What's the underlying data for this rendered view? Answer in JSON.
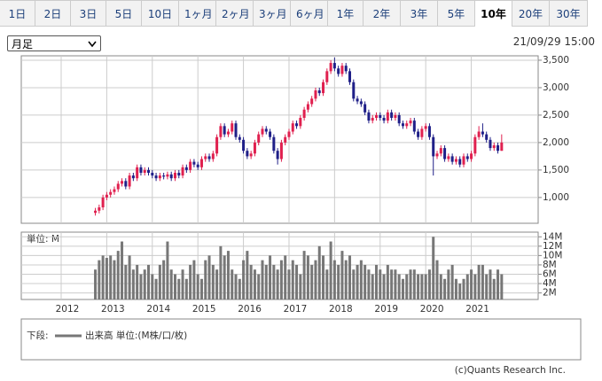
{
  "tabs": [
    "1日",
    "2日",
    "3日",
    "5日",
    "10日",
    "1ヶ月",
    "2ヶ月",
    "3ヶ月",
    "6ヶ月",
    "1年",
    "2年",
    "3年",
    "5年",
    "10年",
    "20年",
    "30年"
  ],
  "selected_tab_index": 13,
  "period_select": "月足",
  "timestamp": "21/09/29 15:00",
  "chart_data": {
    "type": "candlestick",
    "categories": [
      "2012",
      null,
      null,
      null,
      null,
      null,
      null,
      null,
      null,
      null,
      null,
      null,
      "2013",
      null,
      null,
      null,
      null,
      null,
      null,
      null,
      null,
      null,
      null,
      null,
      "2014",
      null,
      null,
      null,
      null,
      null,
      null,
      null,
      null,
      null,
      null,
      null,
      "2015",
      null,
      null,
      null,
      null,
      null,
      null,
      null,
      null,
      null,
      null,
      null,
      "2016",
      null,
      null,
      null,
      null,
      null,
      null,
      null,
      null,
      null,
      null,
      null,
      "2017",
      null,
      null,
      null,
      null,
      null,
      null,
      null,
      null,
      null,
      null,
      null,
      "2018",
      null,
      null,
      null,
      null,
      null,
      null,
      null,
      null,
      null,
      null,
      null,
      "2019",
      null,
      null,
      null,
      null,
      null,
      null,
      null,
      null,
      null,
      null,
      null,
      "2020",
      null,
      null,
      null,
      null,
      null,
      null,
      null,
      null,
      null,
      null,
      null,
      "2021",
      null,
      null,
      null,
      null,
      null,
      null,
      null,
      null
    ],
    "open": [
      null,
      null,
      null,
      null,
      null,
      null,
      null,
      null,
      null,
      720,
      760,
      820,
      1000,
      1050,
      1100,
      1150,
      1250,
      1300,
      1200,
      1400,
      1350,
      1550,
      1450,
      1500,
      1450,
      1400,
      1350,
      1400,
      1380,
      1420,
      1350,
      1450,
      1400,
      1550,
      1500,
      1650,
      1600,
      1550,
      1700,
      1750,
      1700,
      1800,
      2100,
      2300,
      2150,
      2200,
      2350,
      2100,
      2050,
      1850,
      1750,
      1800,
      2000,
      2150,
      2250,
      2200,
      2100,
      1850,
      1700,
      2000,
      2100,
      2200,
      2350,
      2300,
      2450,
      2600,
      2700,
      2800,
      2950,
      2900,
      3100,
      3300,
      3450,
      3350,
      3250,
      3400,
      3300,
      3100,
      2800,
      2750,
      2700,
      2550,
      2400,
      2450,
      2500,
      2450,
      2400,
      2550,
      2450,
      2500,
      2350,
      2300,
      2350,
      2400,
      2200,
      2100,
      2250,
      2300,
      2100,
      1750,
      1800,
      1900,
      1700,
      1750,
      1650,
      1700,
      1600,
      1750,
      1700,
      1800,
      2100,
      2200,
      2150,
      2050,
      1900,
      1950,
      1850
    ],
    "high": [
      null,
      null,
      null,
      null,
      null,
      null,
      null,
      null,
      null,
      810,
      870,
      1050,
      1100,
      1150,
      1200,
      1300,
      1350,
      1350,
      1450,
      1450,
      1600,
      1600,
      1550,
      1550,
      1500,
      1450,
      1450,
      1450,
      1470,
      1470,
      1500,
      1500,
      1600,
      1600,
      1700,
      1700,
      1650,
      1750,
      1800,
      1800,
      1850,
      2150,
      2350,
      2350,
      2250,
      2400,
      2400,
      2150,
      2100,
      1900,
      1850,
      2050,
      2200,
      2300,
      2300,
      2250,
      2150,
      1900,
      2050,
      2150,
      2250,
      2400,
      2400,
      2500,
      2650,
      2750,
      2850,
      3000,
      3000,
      3150,
      3350,
      3500,
      3550,
      3400,
      3450,
      3450,
      3350,
      3150,
      2850,
      2800,
      2750,
      2600,
      2500,
      2550,
      2550,
      2500,
      2600,
      2600,
      2550,
      2550,
      2400,
      2400,
      2450,
      2450,
      2250,
      2300,
      2350,
      2350,
      2150,
      1850,
      1950,
      1950,
      1800,
      1800,
      1750,
      1750,
      1800,
      1800,
      1850,
      2150,
      2300,
      2350,
      2200,
      2100,
      2000,
      2000,
      2150
    ],
    "low": [
      null,
      null,
      null,
      null,
      null,
      null,
      null,
      null,
      null,
      670,
      710,
      770,
      950,
      1000,
      1050,
      1100,
      1200,
      1150,
      1150,
      1300,
      1300,
      1400,
      1400,
      1400,
      1350,
      1300,
      1300,
      1330,
      1330,
      1300,
      1300,
      1350,
      1350,
      1450,
      1450,
      1550,
      1500,
      1500,
      1650,
      1650,
      1650,
      1750,
      2050,
      2100,
      2100,
      2150,
      2050,
      2000,
      1800,
      1700,
      1700,
      1750,
      1950,
      2100,
      2150,
      2050,
      1800,
      1600,
      1650,
      1950,
      2050,
      2150,
      2250,
      2250,
      2400,
      2550,
      2650,
      2750,
      2850,
      2850,
      3050,
      3250,
      3300,
      3200,
      3200,
      3250,
      3050,
      2750,
      2700,
      2650,
      2500,
      2350,
      2350,
      2400,
      2400,
      2350,
      2350,
      2400,
      2400,
      2300,
      2250,
      2250,
      2300,
      2150,
      2050,
      2050,
      2200,
      2050,
      1400,
      1700,
      1750,
      1650,
      1650,
      1600,
      1600,
      1550,
      1550,
      1650,
      1650,
      1750,
      2050,
      2100,
      2000,
      1850,
      1850,
      1800,
      1850
    ],
    "close": [
      null,
      null,
      null,
      null,
      null,
      null,
      null,
      null,
      null,
      760,
      820,
      1000,
      1050,
      1100,
      1150,
      1250,
      1300,
      1200,
      1400,
      1350,
      1550,
      1450,
      1500,
      1450,
      1400,
      1350,
      1400,
      1380,
      1420,
      1350,
      1450,
      1400,
      1550,
      1500,
      1650,
      1600,
      1550,
      1700,
      1750,
      1700,
      1800,
      2100,
      2300,
      2150,
      2200,
      2350,
      2100,
      2050,
      1850,
      1750,
      1800,
      2000,
      2150,
      2250,
      2200,
      2100,
      1850,
      1700,
      2000,
      2100,
      2200,
      2350,
      2300,
      2450,
      2600,
      2700,
      2800,
      2950,
      2900,
      3100,
      3300,
      3450,
      3350,
      3250,
      3400,
      3300,
      3100,
      2800,
      2750,
      2700,
      2550,
      2400,
      2450,
      2500,
      2450,
      2400,
      2550,
      2450,
      2500,
      2350,
      2300,
      2350,
      2400,
      2200,
      2100,
      2250,
      2300,
      2100,
      1750,
      1800,
      1900,
      1700,
      1750,
      1650,
      1700,
      1600,
      1750,
      1700,
      1800,
      2100,
      2200,
      2150,
      2050,
      1900,
      1950,
      1850,
      2000
    ],
    "colors": {
      "up": "#e0204f",
      "down": "#1f1f88"
    },
    "ylim": [
      530,
      3580
    ],
    "yticks": [
      {
        "value": 1000,
        "label": "1,000"
      },
      {
        "value": 1500,
        "label": "1,500"
      },
      {
        "value": 2000,
        "label": "2,000"
      },
      {
        "value": 2500,
        "label": "2,500"
      },
      {
        "value": 3000,
        "label": "3,000"
      },
      {
        "value": 3500,
        "label": "3,500"
      }
    ],
    "grid": true,
    "volume": {
      "unit_label": "単位: M",
      "color": "#777777",
      "values": [
        null,
        null,
        null,
        null,
        null,
        null,
        null,
        null,
        null,
        7,
        9,
        10,
        9.5,
        10,
        9,
        11,
        13,
        8,
        10,
        7,
        8,
        6,
        7,
        8,
        6,
        5,
        8,
        9,
        13,
        7,
        6,
        5,
        7,
        5,
        8,
        9,
        6,
        5,
        9,
        10,
        8,
        7,
        12,
        10,
        11,
        7,
        6,
        5,
        9,
        11,
        8,
        7,
        6,
        9,
        8,
        10,
        8,
        7,
        9,
        10,
        7,
        9,
        8,
        6,
        11,
        10,
        8,
        9,
        12,
        10,
        7,
        13,
        9,
        8,
        11,
        9,
        10,
        7,
        8,
        9,
        8,
        7,
        6,
        8,
        7,
        6,
        8,
        7,
        7,
        6,
        5,
        6,
        7,
        7,
        6,
        6,
        6,
        7,
        14,
        9,
        6,
        5,
        7,
        8,
        5,
        4,
        5,
        6,
        7,
        6,
        8,
        8,
        6,
        7,
        5,
        7,
        6
      ],
      "ylim": [
        0.6,
        15
      ],
      "yticks": [
        {
          "value": 2,
          "label": "2M"
        },
        {
          "value": 4,
          "label": "4M"
        },
        {
          "value": 6,
          "label": "6M"
        },
        {
          "value": 8,
          "label": "8M"
        },
        {
          "value": 10,
          "label": "10M"
        },
        {
          "value": 12,
          "label": "12M"
        },
        {
          "value": 14,
          "label": "14M"
        }
      ]
    }
  },
  "legend": {
    "prefix": "下段:",
    "label": "出来高 単位:(M株/口/枚)"
  },
  "copyright": "(c)Quants Research Inc."
}
